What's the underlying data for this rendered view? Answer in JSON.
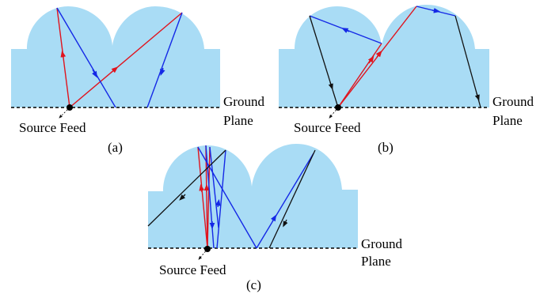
{
  "panels": [
    {
      "id": "a",
      "caption": "(a)",
      "feed_label": "Source Feed",
      "ground_label_1": "Ground",
      "ground_label_2": "Plane"
    },
    {
      "id": "b",
      "caption": "(b)",
      "feed_label": "Source Feed",
      "ground_label_1": "Ground",
      "ground_label_2": "Plane"
    },
    {
      "id": "c",
      "caption": "(c)",
      "feed_label": "Source Feed",
      "ground_label_1": "Ground",
      "ground_label_2": "Plane"
    }
  ],
  "colors": {
    "dielectric": "#a9dcf5",
    "ray_direct": "#e0141e",
    "ray_reflected": "#1428e6",
    "ray_secondary": "#111111",
    "feed": "#000000"
  }
}
